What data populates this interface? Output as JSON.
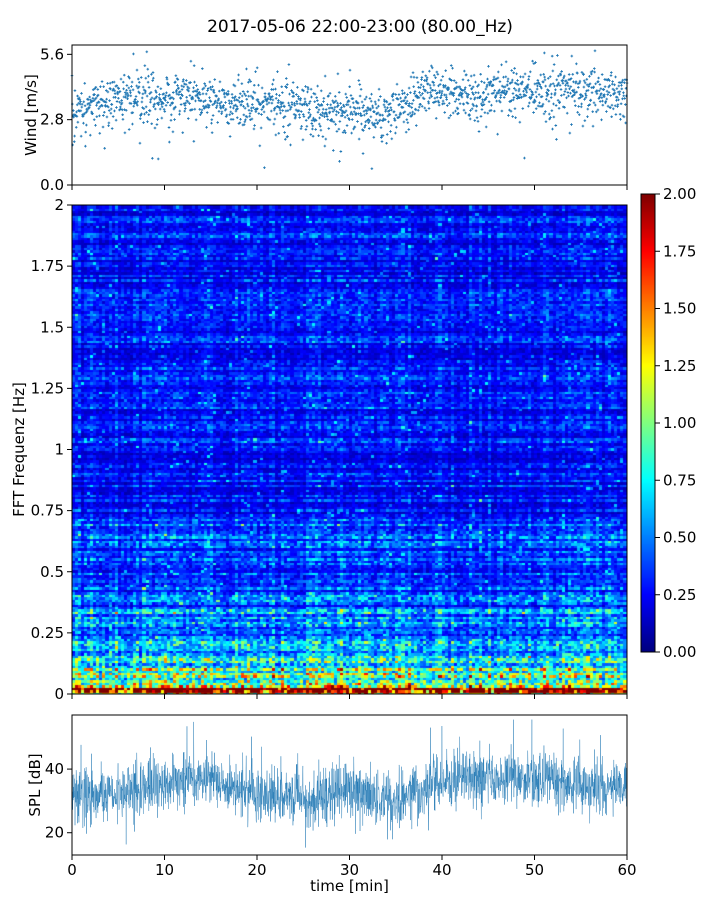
{
  "title": "2017-05-06 22:00-23:00 (80.00_Hz)",
  "chart_data": [
    {
      "type": "scatter",
      "name": "wind-panel",
      "ylabel": "Wind [m/s]",
      "ylim": [
        0.0,
        6.0
      ],
      "yticks": [
        "0.0",
        "2.8",
        "5.6"
      ],
      "ytick_values": [
        0.0,
        2.8,
        5.6
      ],
      "xlim": [
        0,
        60
      ],
      "series_color": "#1f77b4",
      "profile": {
        "x": [
          0,
          3,
          6,
          9,
          12,
          15,
          18,
          21,
          24,
          27,
          30,
          33,
          36,
          39,
          42,
          45,
          48,
          51,
          54,
          57,
          60
        ],
        "y": [
          3.3,
          3.5,
          3.9,
          3.6,
          3.8,
          3.5,
          3.5,
          3.4,
          3.4,
          3.1,
          3.3,
          3.0,
          3.4,
          4.3,
          3.9,
          3.9,
          4.0,
          3.9,
          4.2,
          3.9,
          3.8
        ]
      }
    },
    {
      "type": "heatmap",
      "name": "fft-spectrogram",
      "ylabel": "FFT Frequenz [Hz]",
      "ylim": [
        0,
        2
      ],
      "yticks": [
        "0",
        "0.25",
        "0.5",
        "0.75",
        "1",
        "1.25",
        "1.5",
        "1.75",
        "2"
      ],
      "ytick_values": [
        0,
        0.25,
        0.5,
        0.75,
        1,
        1.25,
        1.5,
        1.75,
        2
      ],
      "xlim": [
        0,
        60
      ],
      "colormap": "jet",
      "colorbar": {
        "range": [
          0.0,
          2.0
        ],
        "ticks": [
          "0.00",
          "0.25",
          "0.50",
          "0.75",
          "1.00",
          "1.25",
          "1.50",
          "1.75",
          "2.00"
        ],
        "tick_values": [
          0.0,
          0.25,
          0.5,
          0.75,
          1.0,
          1.25,
          1.5,
          1.75,
          2.0
        ]
      }
    },
    {
      "type": "line",
      "name": "spl-panel",
      "ylabel": "SPL [dB]",
      "xlabel": "time [min]",
      "ylim": [
        13,
        57
      ],
      "yticks": [
        "20",
        "40"
      ],
      "ytick_values": [
        20,
        40
      ],
      "xlim": [
        0,
        60
      ],
      "xticks": [
        "0",
        "10",
        "20",
        "30",
        "40",
        "50",
        "60"
      ],
      "xtick_values": [
        0,
        10,
        20,
        30,
        40,
        50,
        60
      ],
      "series_color": "#1f77b4",
      "profile": {
        "x": [
          0,
          5,
          10,
          14,
          17,
          20,
          25,
          30,
          35,
          40,
          45,
          50,
          55,
          60
        ],
        "y": [
          32,
          33,
          35,
          38,
          34,
          32,
          31,
          33,
          30,
          36,
          37,
          38,
          35,
          34
        ]
      }
    }
  ]
}
